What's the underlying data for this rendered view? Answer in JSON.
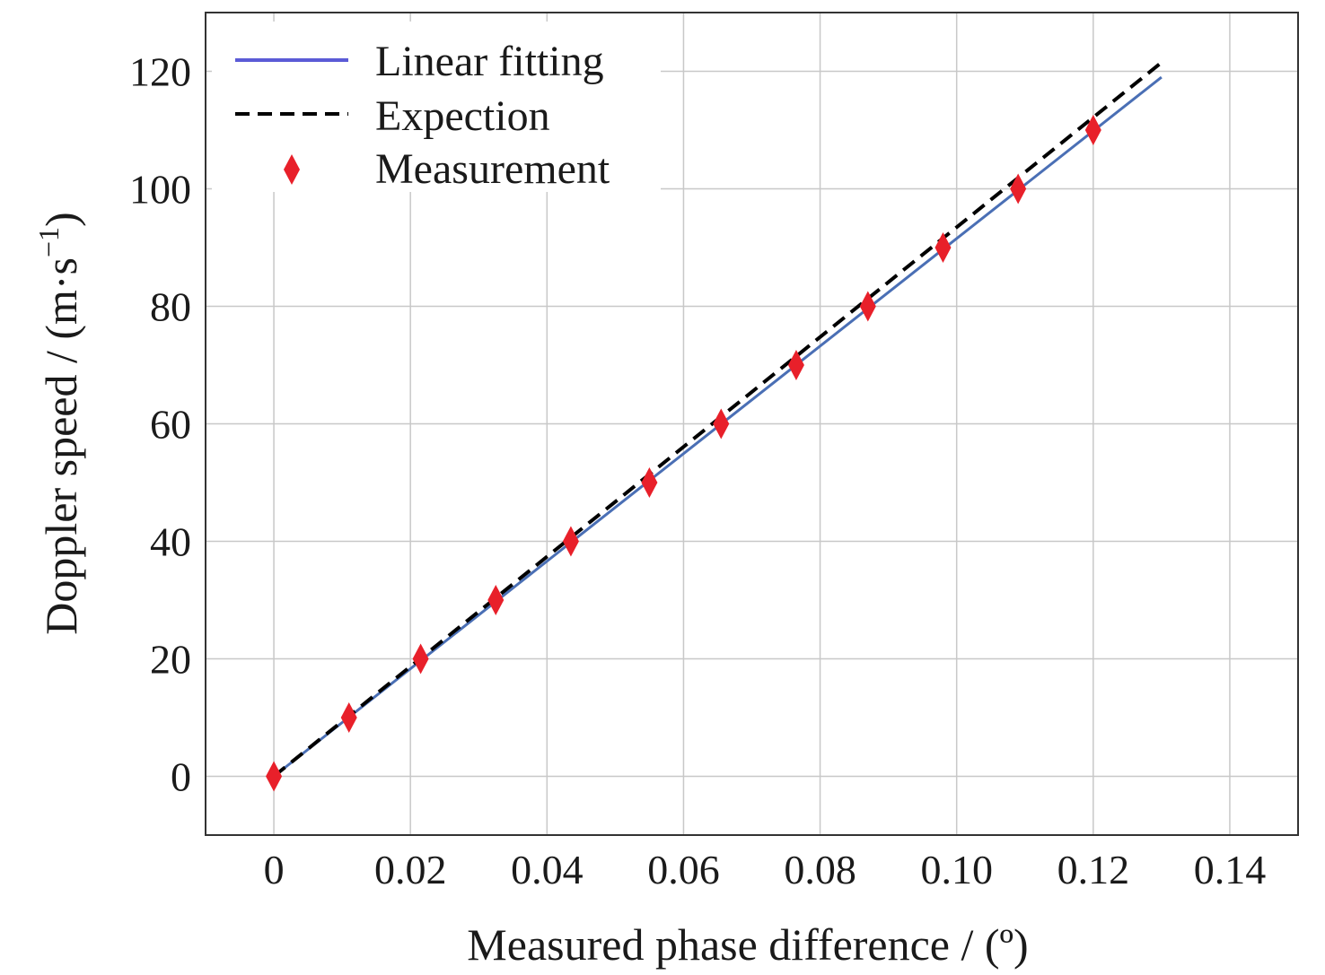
{
  "chart_data": {
    "type": "scatter",
    "xlabel": "Measured phase difference / (º)",
    "ylabel_main": "Doppler speed / (m·s",
    "ylabel_sup": "−1",
    "ylabel_close": ")",
    "xlim": [
      -0.01,
      0.15
    ],
    "ylim": [
      -10,
      130
    ],
    "grid": true,
    "legend_position": "top-left",
    "x_ticks": [
      0,
      0.02,
      0.04,
      0.06,
      0.08,
      0.1,
      0.12,
      0.14
    ],
    "x_tick_labels": [
      "0",
      "0.02",
      "0.04",
      "0.06",
      "0.08",
      "0.10",
      "0.12",
      "0.14"
    ],
    "y_ticks": [
      0,
      20,
      40,
      60,
      80,
      100,
      120
    ],
    "y_tick_labels": [
      "0",
      "20",
      "40",
      "60",
      "80",
      "100",
      "120"
    ],
    "series": [
      {
        "name": "Linear fitting",
        "kind": "line",
        "style": "solid",
        "color": "#4a6fb5",
        "x": [
          0,
          0.13
        ],
        "y": [
          0,
          119
        ]
      },
      {
        "name": "Expection",
        "kind": "line",
        "style": "dashed",
        "color": "#000000",
        "x": [
          0,
          0.13
        ],
        "y": [
          0,
          121.5
        ]
      },
      {
        "name": "Measurement",
        "kind": "scatter",
        "marker": "diamond",
        "color": "#e8202a",
        "x": [
          0,
          0.011,
          0.0215,
          0.0325,
          0.0435,
          0.055,
          0.0655,
          0.0765,
          0.087,
          0.098,
          0.109,
          0.12
        ],
        "y": [
          0,
          10,
          20,
          30,
          40,
          50,
          60,
          70,
          80,
          90,
          100,
          110
        ]
      }
    ]
  }
}
